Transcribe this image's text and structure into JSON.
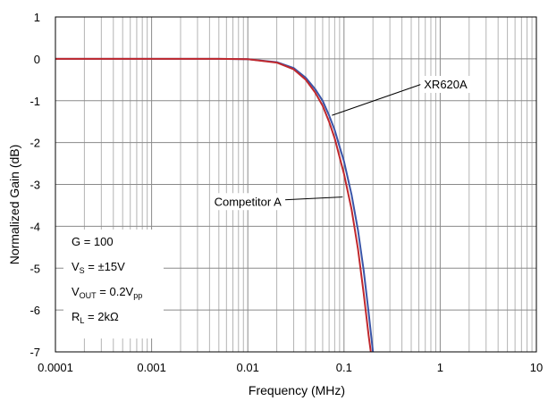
{
  "chart_data": {
    "type": "line",
    "title": "",
    "xlabel": "Frequency (MHz)",
    "ylabel": "Normalized Gain (dB)",
    "xscale": "log",
    "xlim": [
      0.0001,
      10
    ],
    "ylim": [
      -7,
      1
    ],
    "grid": true,
    "x_tick_labels": [
      "0.0001",
      "0.001",
      "0.01",
      "0.1",
      "1",
      "10"
    ],
    "y_tick_labels": [
      "1",
      "0",
      "-1",
      "-2",
      "-3",
      "-4",
      "-5",
      "-6",
      "-7"
    ],
    "series": [
      {
        "name": "XR620A",
        "color": "#3a55a8",
        "x": [
          0.0001,
          0.001,
          0.005,
          0.01,
          0.02,
          0.03,
          0.04,
          0.05,
          0.06,
          0.07,
          0.08,
          0.09,
          0.1,
          0.12,
          0.14,
          0.16,
          0.18,
          0.2
        ],
        "y": [
          0,
          0,
          0,
          -0.01,
          -0.08,
          -0.22,
          -0.45,
          -0.72,
          -1.0,
          -1.35,
          -1.7,
          -2.1,
          -2.45,
          -3.25,
          -4.1,
          -5.05,
          -6.05,
          -7.0
        ]
      },
      {
        "name": "Competitor A",
        "color": "#c0282d",
        "x": [
          0.0001,
          0.001,
          0.005,
          0.01,
          0.02,
          0.03,
          0.04,
          0.05,
          0.06,
          0.07,
          0.08,
          0.09,
          0.1,
          0.12,
          0.14,
          0.16,
          0.18,
          0.19
        ],
        "y": [
          0,
          0,
          0,
          -0.01,
          -0.09,
          -0.25,
          -0.5,
          -0.8,
          -1.12,
          -1.5,
          -1.9,
          -2.35,
          -2.75,
          -3.6,
          -4.55,
          -5.6,
          -6.6,
          -7.0
        ]
      }
    ],
    "annotations": {
      "xr620a": {
        "text": "XR620A",
        "x": 0.65,
        "y": -0.6,
        "target_x": 0.075,
        "target_y": -1.35
      },
      "competitor": {
        "text": "Competitor A",
        "x": 0.01,
        "y": -3.4,
        "target_x": 0.097,
        "target_y": -3.3
      }
    },
    "conditions": {
      "gain": "G = 100",
      "vs": {
        "main": "V",
        "sub": "S",
        "rest": " = ±15V"
      },
      "vout": {
        "main": "V",
        "sub": "OUT",
        "rest": " = 0.2V",
        "sub2": "pp"
      },
      "rl": {
        "main": "R",
        "sub": "L",
        "rest": " = 2kΩ"
      }
    }
  }
}
